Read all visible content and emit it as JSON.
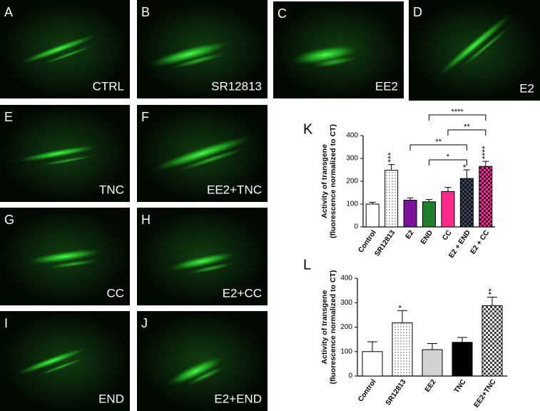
{
  "panels": [
    {
      "letter": "A",
      "label": "CTRL"
    },
    {
      "letter": "B",
      "label": "SR12813"
    },
    {
      "letter": "C",
      "label": "EE2"
    },
    {
      "letter": "D",
      "label": "E2"
    },
    {
      "letter": "E",
      "label": "TNC"
    },
    {
      "letter": "F",
      "label": "EE2+TNC"
    },
    {
      "letter": "G",
      "label": "CC"
    },
    {
      "letter": "H",
      "label": "E2+CC"
    },
    {
      "letter": "I",
      "label": "END"
    },
    {
      "letter": "J",
      "label": "E2+END"
    }
  ],
  "chart_data": [
    {
      "type": "bar",
      "panel": "K",
      "y_label": [
        "Activity of transgene",
        "(fluorescence normalized to CT)"
      ],
      "categories": [
        "Control",
        "SR12813",
        "E2",
        "END",
        "CC",
        "E2 + END",
        "E2 + CC"
      ],
      "values": [
        100,
        248,
        117,
        110,
        155,
        212,
        265
      ],
      "errors": [
        8,
        25,
        10,
        10,
        18,
        38,
        22
      ],
      "colors": [
        "#ffffff",
        "#ffffff",
        "#7b1499",
        "#1f7f2a",
        "#ff2a8c",
        "#3c4a5c",
        "#ff2a9c"
      ],
      "patterns": [
        "none",
        "dots",
        "none",
        "none",
        "none",
        "checker",
        "checker"
      ],
      "stars": [
        "",
        "***",
        "",
        "",
        "",
        "*",
        "****"
      ],
      "comparisons": [
        {
          "between": [
            "END",
            "E2 + END"
          ],
          "label": "*"
        },
        {
          "between": [
            "E2",
            "E2 + END"
          ],
          "label": "**"
        },
        {
          "between": [
            "CC",
            "E2 + CC"
          ],
          "label": "**"
        },
        {
          "between": [
            "END",
            "E2 + CC"
          ],
          "label": "****"
        }
      ],
      "ylim": [
        0,
        400
      ],
      "yticks": [
        0,
        100,
        200,
        300,
        400
      ]
    },
    {
      "type": "bar",
      "panel": "L",
      "y_label": [
        "Activity of transgene",
        "(fluorescence normalized to CT)"
      ],
      "categories": [
        "Control",
        "SR12813",
        "EE2",
        "TNC",
        "EE2+TNC"
      ],
      "values": [
        100,
        218,
        108,
        138,
        288
      ],
      "errors": [
        40,
        50,
        25,
        20,
        35
      ],
      "colors": [
        "#ffffff",
        "#ffffff",
        "#d2d2d2",
        "#000000",
        "#ffffff"
      ],
      "patterns": [
        "none",
        "dots",
        "none",
        "none",
        "checker"
      ],
      "stars": [
        "",
        "*",
        "",
        "",
        "**"
      ],
      "comparisons": [],
      "ylim": [
        0,
        400
      ],
      "yticks": [
        0,
        100,
        200,
        300,
        400
      ]
    }
  ]
}
